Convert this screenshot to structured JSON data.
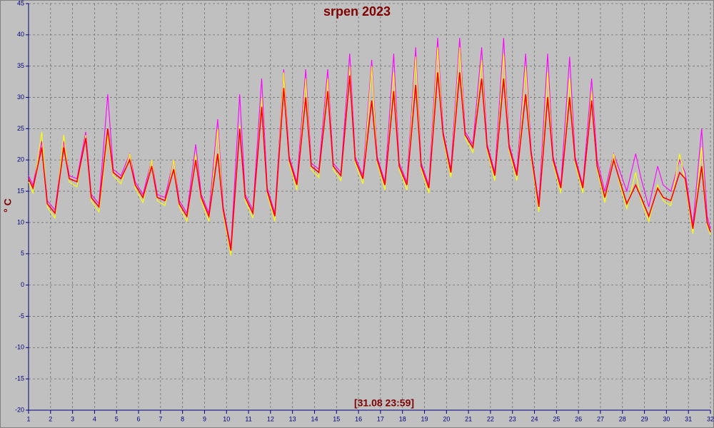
{
  "chart_data": {
    "type": "line",
    "title": "srpen 2023",
    "y_label": "° C",
    "annotation": "[31.08 23:59]",
    "xlim": [
      1,
      32
    ],
    "xticks": [
      1,
      2,
      3,
      4,
      5,
      6,
      7,
      8,
      9,
      10,
      11,
      12,
      13,
      14,
      15,
      16,
      17,
      18,
      19,
      20,
      21,
      22,
      23,
      24,
      25,
      26,
      27,
      28,
      29,
      30,
      31,
      32
    ],
    "ylim": [
      -20,
      45
    ],
    "yticks": [
      -20,
      -15,
      -10,
      -5,
      0,
      5,
      10,
      15,
      20,
      25,
      30,
      35,
      40,
      45
    ],
    "grid": true,
    "x": [
      1,
      1.2,
      1.6,
      1.85,
      2.2,
      2.6,
      2.85,
      3.2,
      3.6,
      3.85,
      4.2,
      4.6,
      4.85,
      5.2,
      5.6,
      5.85,
      6.2,
      6.6,
      6.85,
      7.2,
      7.6,
      7.85,
      8.2,
      8.6,
      8.85,
      9.2,
      9.6,
      9.85,
      10.2,
      10.6,
      10.85,
      11.2,
      11.6,
      11.85,
      12.2,
      12.6,
      12.85,
      13.2,
      13.6,
      13.85,
      14.2,
      14.6,
      14.85,
      15.2,
      15.6,
      15.85,
      16.2,
      16.6,
      16.85,
      17.2,
      17.6,
      17.85,
      18.2,
      18.6,
      18.85,
      19.2,
      19.6,
      19.85,
      20.2,
      20.6,
      20.85,
      21.2,
      21.6,
      21.85,
      22.2,
      22.6,
      22.85,
      23.2,
      23.6,
      23.85,
      24.2,
      24.6,
      24.85,
      25.2,
      25.6,
      25.85,
      26.2,
      26.6,
      26.85,
      27.2,
      27.6,
      27.85,
      28.2,
      28.6,
      28.85,
      29.2,
      29.6,
      29.85,
      30.2,
      30.6,
      30.85,
      31.2,
      31.6,
      31.85,
      32
    ],
    "series": [
      {
        "color": "#ff00ff",
        "values": [
          17.5,
          16,
          23,
          13.5,
          12,
          23,
          17.5,
          17,
          24.5,
          14.5,
          13,
          30.5,
          18.5,
          17.5,
          21,
          16.5,
          14.5,
          20,
          14.5,
          14,
          20,
          13.5,
          11.5,
          22.5,
          14.5,
          11.5,
          26.5,
          12.5,
          6,
          30.5,
          14.5,
          12,
          33,
          15.5,
          11.5,
          34.5,
          20.5,
          16.5,
          34.5,
          19.5,
          18.5,
          34.5,
          19.5,
          18,
          37,
          20.5,
          17.5,
          36,
          20.5,
          16.5,
          37,
          19.5,
          16.5,
          38,
          19.5,
          16,
          39.5,
          24.5,
          18.5,
          39.5,
          24.5,
          22.5,
          38,
          22.5,
          18,
          39.5,
          22.5,
          18,
          37,
          21.5,
          13,
          37,
          20.5,
          16,
          36.5,
          20.5,
          16,
          33,
          20,
          15,
          21,
          18.5,
          15,
          21,
          17,
          12.5,
          19,
          16,
          15,
          20,
          18,
          9.5,
          25,
          11,
          9
        ]
      },
      {
        "color": "#ffff00",
        "values": [
          16.5,
          14.7,
          24.5,
          12.5,
          10.7,
          24,
          16.5,
          15.7,
          24,
          13.5,
          11.7,
          24,
          17.5,
          16.2,
          21,
          15.5,
          13.2,
          20,
          13.5,
          12.7,
          20,
          12.5,
          10.2,
          21,
          13.5,
          10.2,
          25,
          11.5,
          4.7,
          25.5,
          13.5,
          10.7,
          30,
          14.5,
          10.2,
          34,
          19.5,
          15.2,
          33,
          18.5,
          17.2,
          33,
          18.5,
          16.7,
          35,
          19.5,
          16.2,
          35,
          19.5,
          15.2,
          34,
          18.5,
          15.2,
          36.5,
          18.5,
          14.7,
          38,
          23.5,
          17.2,
          38,
          23.5,
          21.2,
          36,
          21.5,
          16.7,
          37,
          21.5,
          16.7,
          35,
          20.5,
          11.7,
          34,
          19.5,
          14.7,
          33,
          19.5,
          14.7,
          31,
          18.5,
          13.2,
          21,
          16.5,
          12.2,
          18,
          13.5,
          10.2,
          16,
          13.5,
          12.7,
          21,
          16.5,
          8.2,
          22,
          9.5,
          8
        ]
      },
      {
        "color": "#ff0000",
        "values": [
          17,
          15.5,
          22,
          13,
          11.5,
          22,
          17,
          16.5,
          23.5,
          14,
          12.5,
          25,
          18,
          17,
          20,
          16,
          14,
          19,
          14,
          13.5,
          18.5,
          13,
          11,
          20,
          14,
          11,
          21,
          12,
          5.5,
          25,
          14,
          11.5,
          28.5,
          15,
          11,
          31.5,
          20,
          16,
          30,
          19,
          18,
          31,
          19,
          17.5,
          33.5,
          20,
          17,
          29.5,
          20,
          16,
          31,
          19,
          16,
          32,
          19,
          15.5,
          34,
          24,
          18,
          34,
          24,
          22,
          33,
          22,
          17.5,
          33,
          22,
          17.5,
          30.5,
          21,
          12.5,
          30,
          20,
          15.5,
          30,
          20,
          15.5,
          29.5,
          19,
          14,
          20,
          17,
          13,
          16,
          14,
          11,
          15.5,
          14,
          13.5,
          18,
          17,
          9,
          19,
          10,
          8.5
        ]
      }
    ]
  }
}
